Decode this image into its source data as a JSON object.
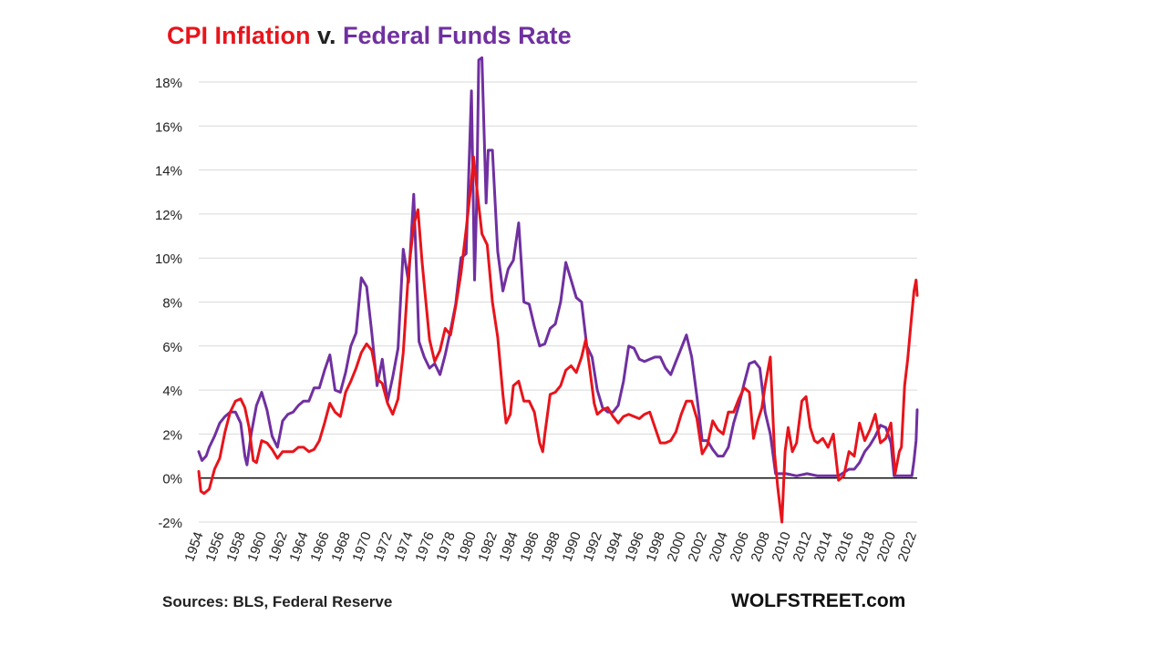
{
  "title": {
    "part1": "CPI Inflation",
    "part2": "v.",
    "part3": "Federal Funds Rate"
  },
  "footer": {
    "sources": "Sources: BLS, Federal Reserve",
    "brand": "WOLFSTREET.com"
  },
  "colors": {
    "cpi": "#e8141b",
    "fed": "#7030a0",
    "grid": "#d9d9d9",
    "zero_line": "#000000"
  },
  "chart_data": {
    "type": "line",
    "title": "CPI Inflation v. Federal Funds Rate",
    "xlabel": "",
    "ylabel": "",
    "xlim": [
      1954,
      2022.5
    ],
    "ylim": [
      -2,
      18
    ],
    "grid": true,
    "y_ticks": [
      -2,
      0,
      2,
      4,
      6,
      8,
      10,
      12,
      14,
      16,
      18
    ],
    "y_tick_labels": [
      "-2%",
      "0%",
      "2%",
      "4%",
      "6%",
      "8%",
      "10%",
      "12%",
      "14%",
      "16%",
      "18%"
    ],
    "x_ticks": [
      1954,
      1956,
      1958,
      1960,
      1962,
      1964,
      1966,
      1968,
      1970,
      1972,
      1974,
      1976,
      1978,
      1980,
      1982,
      1984,
      1986,
      1988,
      1990,
      1992,
      1994,
      1996,
      1998,
      2000,
      2002,
      2004,
      2006,
      2008,
      2010,
      2012,
      2014,
      2016,
      2018,
      2020,
      2022
    ],
    "x_tick_labels": [
      "1954",
      "1956",
      "1958",
      "1960",
      "1962",
      "1964",
      "1966",
      "1968",
      "1970",
      "1972",
      "1974",
      "1976",
      "1978",
      "1980",
      "1982",
      "1984",
      "1986",
      "1988",
      "1990",
      "1992",
      "1994",
      "1996",
      "1998",
      "2000",
      "2002",
      "2004",
      "2006",
      "2008",
      "2010",
      "2012",
      "2014",
      "2016",
      "2018",
      "2020",
      "2022"
    ],
    "series": [
      {
        "name": "CPI Inflation",
        "points": [
          [
            1954.0,
            0.3
          ],
          [
            1954.2,
            -0.6
          ],
          [
            1954.5,
            -0.7
          ],
          [
            1955.0,
            -0.5
          ],
          [
            1955.5,
            0.4
          ],
          [
            1956.0,
            0.9
          ],
          [
            1956.5,
            2.1
          ],
          [
            1957.0,
            3.0
          ],
          [
            1957.5,
            3.5
          ],
          [
            1958.0,
            3.6
          ],
          [
            1958.4,
            3.2
          ],
          [
            1958.8,
            2.3
          ],
          [
            1959.2,
            0.8
          ],
          [
            1959.5,
            0.7
          ],
          [
            1960.0,
            1.7
          ],
          [
            1960.5,
            1.6
          ],
          [
            1961.0,
            1.3
          ],
          [
            1961.5,
            0.9
          ],
          [
            1962.0,
            1.2
          ],
          [
            1962.5,
            1.2
          ],
          [
            1963.0,
            1.2
          ],
          [
            1963.5,
            1.4
          ],
          [
            1964.0,
            1.4
          ],
          [
            1964.5,
            1.2
          ],
          [
            1965.0,
            1.3
          ],
          [
            1965.5,
            1.7
          ],
          [
            1966.0,
            2.5
          ],
          [
            1966.5,
            3.4
          ],
          [
            1967.0,
            3.0
          ],
          [
            1967.5,
            2.8
          ],
          [
            1968.0,
            3.9
          ],
          [
            1968.5,
            4.4
          ],
          [
            1969.0,
            5.0
          ],
          [
            1969.5,
            5.7
          ],
          [
            1970.0,
            6.1
          ],
          [
            1970.5,
            5.8
          ],
          [
            1971.0,
            4.5
          ],
          [
            1971.5,
            4.3
          ],
          [
            1972.0,
            3.4
          ],
          [
            1972.5,
            2.9
          ],
          [
            1973.0,
            3.6
          ],
          [
            1973.5,
            5.7
          ],
          [
            1974.0,
            9.4
          ],
          [
            1974.5,
            11.5
          ],
          [
            1974.9,
            12.2
          ],
          [
            1975.3,
            9.8
          ],
          [
            1975.7,
            7.8
          ],
          [
            1976.0,
            6.3
          ],
          [
            1976.5,
            5.3
          ],
          [
            1977.0,
            5.8
          ],
          [
            1977.5,
            6.8
          ],
          [
            1978.0,
            6.5
          ],
          [
            1978.5,
            7.8
          ],
          [
            1979.0,
            9.3
          ],
          [
            1979.5,
            11.3
          ],
          [
            1980.0,
            13.5
          ],
          [
            1980.2,
            14.6
          ],
          [
            1980.6,
            12.8
          ],
          [
            1981.0,
            11.1
          ],
          [
            1981.5,
            10.6
          ],
          [
            1982.0,
            8.0
          ],
          [
            1982.5,
            6.4
          ],
          [
            1983.0,
            3.8
          ],
          [
            1983.3,
            2.5
          ],
          [
            1983.7,
            2.9
          ],
          [
            1984.0,
            4.2
          ],
          [
            1984.5,
            4.4
          ],
          [
            1985.0,
            3.5
          ],
          [
            1985.5,
            3.5
          ],
          [
            1986.0,
            3.0
          ],
          [
            1986.5,
            1.6
          ],
          [
            1986.8,
            1.2
          ],
          [
            1987.0,
            2.0
          ],
          [
            1987.5,
            3.8
          ],
          [
            1988.0,
            3.9
          ],
          [
            1988.5,
            4.2
          ],
          [
            1989.0,
            4.9
          ],
          [
            1989.5,
            5.1
          ],
          [
            1990.0,
            4.8
          ],
          [
            1990.5,
            5.5
          ],
          [
            1990.9,
            6.3
          ],
          [
            1991.3,
            4.9
          ],
          [
            1991.7,
            3.4
          ],
          [
            1992.0,
            2.9
          ],
          [
            1992.5,
            3.1
          ],
          [
            1993.0,
            3.2
          ],
          [
            1993.5,
            2.8
          ],
          [
            1994.0,
            2.5
          ],
          [
            1994.5,
            2.8
          ],
          [
            1995.0,
            2.9
          ],
          [
            1995.5,
            2.8
          ],
          [
            1996.0,
            2.7
          ],
          [
            1996.5,
            2.9
          ],
          [
            1997.0,
            3.0
          ],
          [
            1997.5,
            2.3
          ],
          [
            1998.0,
            1.6
          ],
          [
            1998.5,
            1.6
          ],
          [
            1999.0,
            1.7
          ],
          [
            1999.5,
            2.1
          ],
          [
            2000.0,
            2.9
          ],
          [
            2000.5,
            3.5
          ],
          [
            2001.0,
            3.5
          ],
          [
            2001.5,
            2.7
          ],
          [
            2002.0,
            1.1
          ],
          [
            2002.5,
            1.5
          ],
          [
            2003.0,
            2.6
          ],
          [
            2003.5,
            2.2
          ],
          [
            2004.0,
            2.0
          ],
          [
            2004.5,
            3.0
          ],
          [
            2005.0,
            3.0
          ],
          [
            2005.5,
            3.6
          ],
          [
            2006.0,
            4.1
          ],
          [
            2006.5,
            3.9
          ],
          [
            2006.9,
            1.8
          ],
          [
            2007.3,
            2.6
          ],
          [
            2007.7,
            3.2
          ],
          [
            2008.0,
            4.2
          ],
          [
            2008.5,
            5.5
          ],
          [
            2008.9,
            1.1
          ],
          [
            2009.2,
            -0.4
          ],
          [
            2009.6,
            -2.0
          ],
          [
            2009.9,
            1.2
          ],
          [
            2010.2,
            2.3
          ],
          [
            2010.6,
            1.2
          ],
          [
            2011.0,
            1.6
          ],
          [
            2011.5,
            3.5
          ],
          [
            2011.9,
            3.7
          ],
          [
            2012.3,
            2.3
          ],
          [
            2012.7,
            1.7
          ],
          [
            2013.0,
            1.6
          ],
          [
            2013.5,
            1.8
          ],
          [
            2014.0,
            1.4
          ],
          [
            2014.5,
            2.0
          ],
          [
            2015.0,
            -0.1
          ],
          [
            2015.5,
            0.1
          ],
          [
            2016.0,
            1.2
          ],
          [
            2016.5,
            1.0
          ],
          [
            2017.0,
            2.5
          ],
          [
            2017.5,
            1.7
          ],
          [
            2018.0,
            2.2
          ],
          [
            2018.5,
            2.9
          ],
          [
            2019.0,
            1.6
          ],
          [
            2019.5,
            1.8
          ],
          [
            2020.0,
            2.5
          ],
          [
            2020.4,
            0.2
          ],
          [
            2020.8,
            1.2
          ],
          [
            2021.0,
            1.4
          ],
          [
            2021.3,
            4.2
          ],
          [
            2021.6,
            5.4
          ],
          [
            2021.9,
            7.0
          ],
          [
            2022.2,
            8.5
          ],
          [
            2022.4,
            9.0
          ],
          [
            2022.5,
            8.3
          ]
        ]
      },
      {
        "name": "Federal Funds Rate",
        "points": [
          [
            1954.0,
            1.2
          ],
          [
            1954.3,
            0.8
          ],
          [
            1954.7,
            1.0
          ],
          [
            1955.0,
            1.4
          ],
          [
            1955.5,
            1.9
          ],
          [
            1956.0,
            2.5
          ],
          [
            1956.5,
            2.8
          ],
          [
            1957.0,
            3.0
          ],
          [
            1957.5,
            3.0
          ],
          [
            1958.0,
            2.5
          ],
          [
            1958.4,
            1.0
          ],
          [
            1958.6,
            0.6
          ],
          [
            1959.0,
            2.0
          ],
          [
            1959.5,
            3.3
          ],
          [
            1960.0,
            3.9
          ],
          [
            1960.5,
            3.1
          ],
          [
            1961.0,
            1.9
          ],
          [
            1961.5,
            1.4
          ],
          [
            1962.0,
            2.6
          ],
          [
            1962.5,
            2.9
          ],
          [
            1963.0,
            3.0
          ],
          [
            1963.5,
            3.3
          ],
          [
            1964.0,
            3.5
          ],
          [
            1964.5,
            3.5
          ],
          [
            1965.0,
            4.1
          ],
          [
            1965.5,
            4.1
          ],
          [
            1966.0,
            4.9
          ],
          [
            1966.5,
            5.6
          ],
          [
            1967.0,
            4.0
          ],
          [
            1967.5,
            3.9
          ],
          [
            1968.0,
            4.8
          ],
          [
            1968.5,
            6.0
          ],
          [
            1969.0,
            6.6
          ],
          [
            1969.5,
            9.1
          ],
          [
            1970.0,
            8.7
          ],
          [
            1970.5,
            6.6
          ],
          [
            1971.0,
            4.2
          ],
          [
            1971.5,
            5.4
          ],
          [
            1972.0,
            3.5
          ],
          [
            1972.5,
            4.6
          ],
          [
            1973.0,
            5.9
          ],
          [
            1973.5,
            10.4
          ],
          [
            1974.0,
            8.9
          ],
          [
            1974.5,
            12.9
          ],
          [
            1975.0,
            6.2
          ],
          [
            1975.5,
            5.5
          ],
          [
            1976.0,
            5.0
          ],
          [
            1976.5,
            5.2
          ],
          [
            1977.0,
            4.7
          ],
          [
            1977.5,
            5.6
          ],
          [
            1978.0,
            6.7
          ],
          [
            1978.5,
            7.9
          ],
          [
            1979.0,
            10.0
          ],
          [
            1979.5,
            10.2
          ],
          [
            1980.0,
            17.6
          ],
          [
            1980.3,
            9.0
          ],
          [
            1980.5,
            12.5
          ],
          [
            1980.7,
            19.0
          ],
          [
            1981.0,
            19.1
          ],
          [
            1981.4,
            12.5
          ],
          [
            1981.6,
            14.9
          ],
          [
            1982.0,
            14.9
          ],
          [
            1982.5,
            10.3
          ],
          [
            1983.0,
            8.5
          ],
          [
            1983.5,
            9.5
          ],
          [
            1984.0,
            9.9
          ],
          [
            1984.5,
            11.6
          ],
          [
            1985.0,
            8.0
          ],
          [
            1985.5,
            7.9
          ],
          [
            1986.0,
            6.9
          ],
          [
            1986.5,
            6.0
          ],
          [
            1987.0,
            6.1
          ],
          [
            1987.5,
            6.8
          ],
          [
            1988.0,
            7.0
          ],
          [
            1988.5,
            8.0
          ],
          [
            1989.0,
            9.8
          ],
          [
            1989.5,
            9.0
          ],
          [
            1990.0,
            8.2
          ],
          [
            1990.5,
            8.0
          ],
          [
            1991.0,
            6.0
          ],
          [
            1991.5,
            5.5
          ],
          [
            1992.0,
            4.0
          ],
          [
            1992.5,
            3.2
          ],
          [
            1993.0,
            3.0
          ],
          [
            1993.5,
            3.0
          ],
          [
            1994.0,
            3.3
          ],
          [
            1994.5,
            4.4
          ],
          [
            1995.0,
            6.0
          ],
          [
            1995.5,
            5.9
          ],
          [
            1996.0,
            5.4
          ],
          [
            1996.5,
            5.3
          ],
          [
            1997.0,
            5.4
          ],
          [
            1997.5,
            5.5
          ],
          [
            1998.0,
            5.5
          ],
          [
            1998.5,
            5.0
          ],
          [
            1999.0,
            4.7
          ],
          [
            1999.5,
            5.3
          ],
          [
            2000.0,
            5.9
          ],
          [
            2000.5,
            6.5
          ],
          [
            2001.0,
            5.5
          ],
          [
            2001.5,
            3.7
          ],
          [
            2002.0,
            1.7
          ],
          [
            2002.5,
            1.7
          ],
          [
            2003.0,
            1.3
          ],
          [
            2003.5,
            1.0
          ],
          [
            2004.0,
            1.0
          ],
          [
            2004.5,
            1.4
          ],
          [
            2005.0,
            2.5
          ],
          [
            2005.5,
            3.3
          ],
          [
            2006.0,
            4.3
          ],
          [
            2006.5,
            5.2
          ],
          [
            2007.0,
            5.3
          ],
          [
            2007.5,
            5.0
          ],
          [
            2008.0,
            3.0
          ],
          [
            2008.5,
            2.0
          ],
          [
            2009.0,
            0.2
          ],
          [
            2010.0,
            0.2
          ],
          [
            2011.0,
            0.1
          ],
          [
            2012.0,
            0.2
          ],
          [
            2013.0,
            0.1
          ],
          [
            2014.0,
            0.1
          ],
          [
            2015.0,
            0.1
          ],
          [
            2016.0,
            0.4
          ],
          [
            2016.5,
            0.4
          ],
          [
            2017.0,
            0.7
          ],
          [
            2017.5,
            1.2
          ],
          [
            2018.0,
            1.5
          ],
          [
            2018.5,
            1.9
          ],
          [
            2019.0,
            2.4
          ],
          [
            2019.5,
            2.3
          ],
          [
            2020.0,
            1.6
          ],
          [
            2020.3,
            0.1
          ],
          [
            2021.0,
            0.1
          ],
          [
            2021.5,
            0.1
          ],
          [
            2022.0,
            0.1
          ],
          [
            2022.2,
            0.8
          ],
          [
            2022.4,
            1.7
          ],
          [
            2022.5,
            3.1
          ]
        ]
      }
    ]
  }
}
